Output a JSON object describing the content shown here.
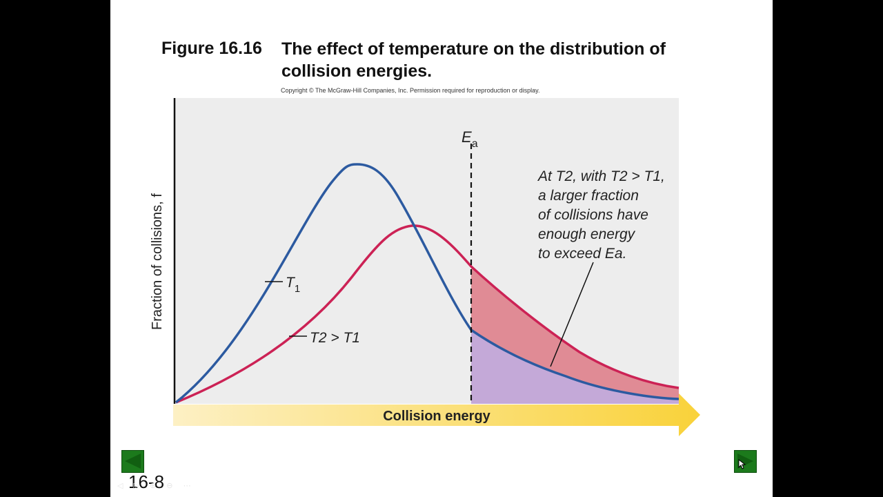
{
  "figure": {
    "number": "Figure 16.16",
    "title": "The effect of temperature on the distribution of collision energies.",
    "copyright": "Copyright © The McGraw-Hill Companies, Inc. Permission required for reproduction or display."
  },
  "chart_data": {
    "type": "line",
    "xlabel": "Collision energy",
    "ylabel": "Fraction of collisions, f",
    "threshold": {
      "label": "Ea",
      "label_main": "E",
      "label_sub": "a"
    },
    "series": [
      {
        "name": "T1",
        "label_main": "T",
        "label_sub": "1",
        "color": "#2c5aa0"
      },
      {
        "name": "T2 > T1",
        "color": "#cc2255"
      }
    ],
    "annotation": {
      "lines": [
        "At T2, with T2 > T1,",
        "a larger fraction",
        "of collisions have",
        "enough energy",
        "to exceed Ea."
      ]
    },
    "shaded_regions": [
      {
        "meaning": "fraction at T1 exceeding Ea",
        "color": "#c4a9d8"
      },
      {
        "meaning": "additional fraction at T2 exceeding Ea",
        "color": "#e08b95"
      }
    ]
  },
  "navigation": {
    "slide_number": "16-8",
    "prev_label": "previous slide",
    "next_label": "next slide"
  },
  "colors": {
    "axis_arrow_start": "#fdf0c4",
    "axis_arrow_end": "#f9d23a",
    "background": "#ededed"
  }
}
